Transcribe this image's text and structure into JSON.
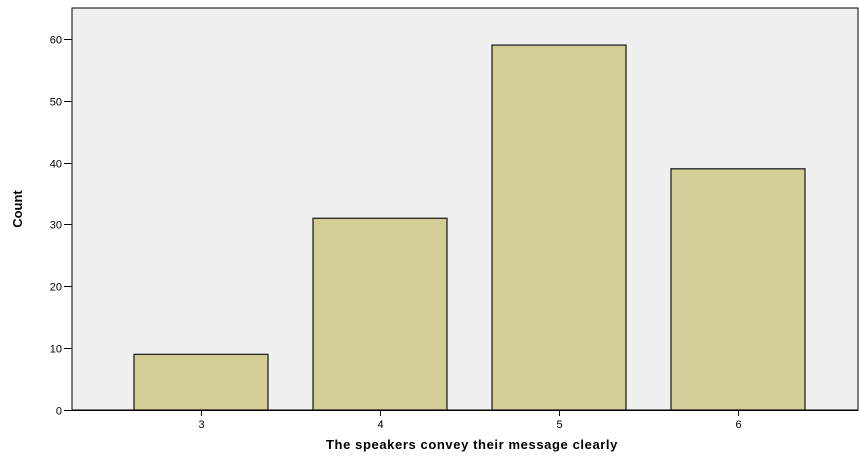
{
  "chart_data": {
    "type": "bar",
    "title": "",
    "xlabel": "The speakers convey their message clearly",
    "ylabel": "Count",
    "categories": [
      "3",
      "4",
      "5",
      "6"
    ],
    "values": [
      9,
      31,
      59,
      39
    ],
    "ylim": [
      0,
      65
    ],
    "yticks": [
      0,
      10,
      20,
      30,
      40,
      50,
      60
    ],
    "grid": false,
    "legend": "none",
    "colors": {
      "bar_fill": "#d4cd96",
      "bar_stroke": "#222222",
      "plot_background": "#f0f0f0",
      "page_background": "#ffffff"
    }
  }
}
